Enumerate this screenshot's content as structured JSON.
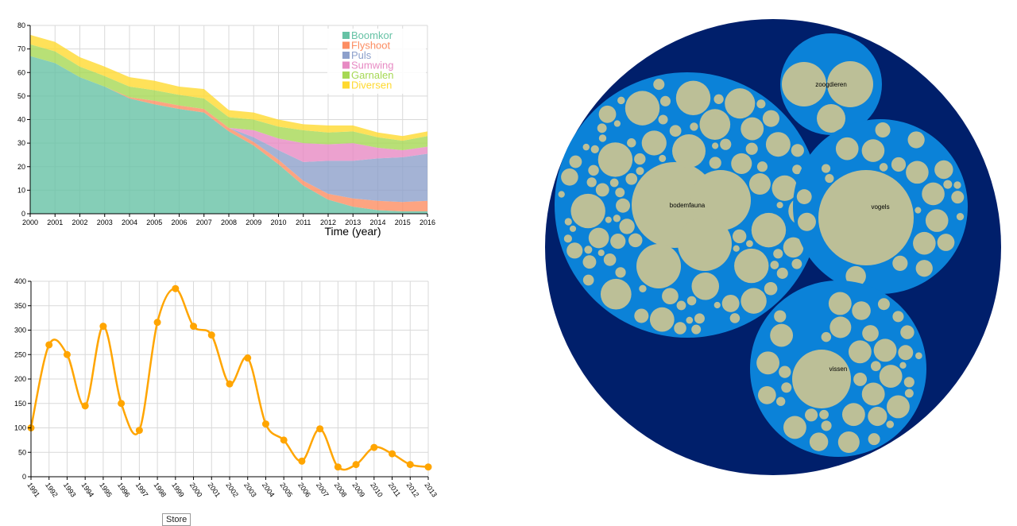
{
  "colors": {
    "series": [
      "#66c2a5",
      "#fc8d62",
      "#8da0cb",
      "#e78ac3",
      "#a6d854",
      "#ffd92f"
    ],
    "line": "#ffa500",
    "outer_circle": "#001f6b",
    "group_circle": "#0b82d8",
    "leaf_circle": "#bcbf97",
    "grid": "#d9d9d9"
  },
  "store_button": {
    "label": "Store"
  },
  "chart_data": [
    {
      "type": "area",
      "stacked": true,
      "xlabel": "Time (year)",
      "ylabel": "",
      "xlim": [
        2000,
        2016
      ],
      "ylim": [
        0,
        80
      ],
      "yticks": [
        0,
        10,
        20,
        30,
        40,
        50,
        60,
        70,
        80
      ],
      "grid": true,
      "legend_position": "top-right",
      "x": [
        2000,
        2001,
        2002,
        2003,
        2004,
        2005,
        2006,
        2007,
        2008,
        2009,
        2010,
        2011,
        2012,
        2013,
        2014,
        2015,
        2016
      ],
      "series": [
        {
          "name": "Boomkor",
          "values": [
            67,
            64,
            58,
            54,
            49,
            46.5,
            44.5,
            43,
            35,
            29,
            21,
            12,
            6,
            3,
            1.5,
            1,
            1
          ]
        },
        {
          "name": "Flyshoot",
          "values": [
            0,
            0,
            0,
            0,
            0.5,
            1.5,
            1.5,
            1.5,
            1.5,
            1.5,
            2,
            2,
            2.5,
            3.5,
            4,
            4,
            4.5
          ]
        },
        {
          "name": "Puls",
          "values": [
            0,
            0,
            0,
            0,
            0,
            0,
            0,
            0,
            0,
            2,
            4,
            8,
            14,
            16,
            18,
            19,
            20
          ]
        },
        {
          "name": "Sumwing",
          "values": [
            0,
            0,
            0,
            0,
            0,
            0,
            0,
            0,
            0,
            3,
            5,
            8,
            7,
            7.5,
            4.5,
            3,
            3
          ]
        },
        {
          "name": "Garnalen",
          "values": [
            5,
            5,
            4.5,
            4.5,
            4.5,
            4.5,
            4.5,
            4.5,
            4.5,
            4.5,
            5,
            5.5,
            5,
            5,
            4.5,
            4,
            4.5
          ]
        },
        {
          "name": "Diversen",
          "values": [
            4,
            4,
            4,
            4,
            4,
            4,
            3.5,
            4,
            3,
            3,
            3,
            2.5,
            3,
            2.5,
            2,
            2,
            2
          ]
        }
      ]
    },
    {
      "type": "line",
      "xlabel": "",
      "ylabel": "",
      "ylim": [
        0,
        400
      ],
      "yticks": [
        0,
        50,
        100,
        150,
        200,
        250,
        300,
        350,
        400
      ],
      "grid": true,
      "x": [
        "1991",
        "1992",
        "1993",
        "1994",
        "1995",
        "1996",
        "1997",
        "1998",
        "1999",
        "2000",
        "2001",
        "2002",
        "2003",
        "2004",
        "2005",
        "2006",
        "2007",
        "2008",
        "2009",
        "2010",
        "2011",
        "2012",
        "2013"
      ],
      "values": [
        100,
        270,
        250,
        145,
        308,
        150,
        95,
        316,
        385,
        308,
        290,
        190,
        243,
        108,
        75,
        32,
        98,
        20,
        25,
        60,
        47,
        25,
        20
      ]
    },
    {
      "type": "circle-packing",
      "root": "",
      "groups": [
        {
          "name": "bodemfauna",
          "leaf_count": 100
        },
        {
          "name": "zoogdieren",
          "leaf_count": 3
        },
        {
          "name": "vogels",
          "leaf_count": 25
        },
        {
          "name": "vissen",
          "leaf_count": 38
        }
      ]
    }
  ]
}
